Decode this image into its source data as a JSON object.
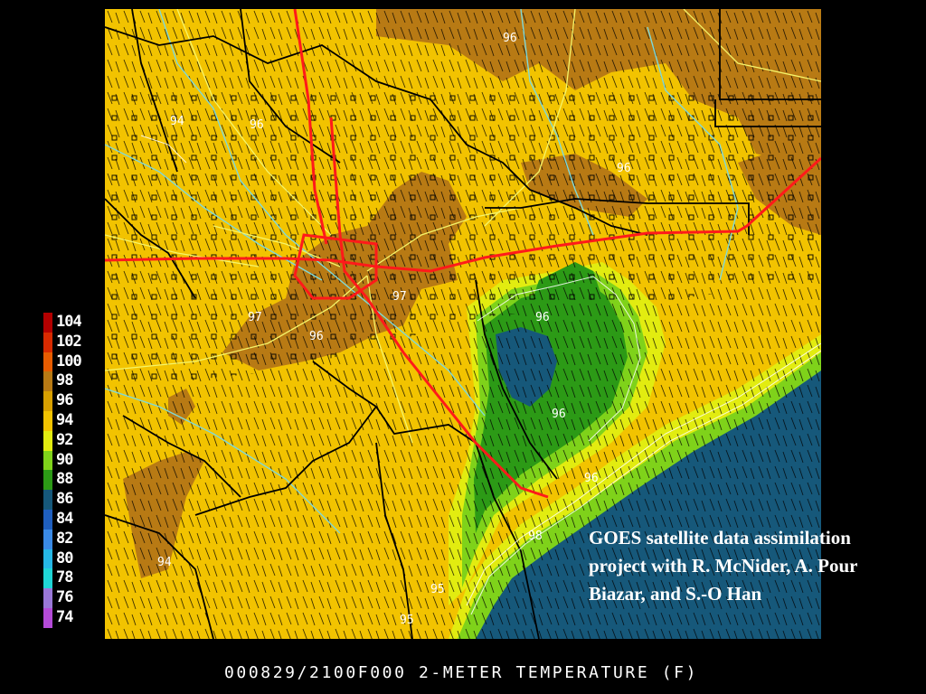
{
  "map": {
    "field": "2-meter temperature",
    "contour_labels": [
      "96",
      "94",
      "96",
      "96",
      "97",
      "97",
      "96",
      "96",
      "96",
      "94",
      "95",
      "96",
      "98",
      "95"
    ]
  },
  "legend": {
    "entries": [
      {
        "label": "104",
        "color": "#b30000"
      },
      {
        "label": "102",
        "color": "#d82a00"
      },
      {
        "label": "100",
        "color": "#e85c00"
      },
      {
        "label": "98",
        "color": "#b87a14"
      },
      {
        "label": "96",
        "color": "#d8a000"
      },
      {
        "label": "94",
        "color": "#f2c300"
      },
      {
        "label": "92",
        "color": "#e2ec10"
      },
      {
        "label": "90",
        "color": "#7fd21a"
      },
      {
        "label": "88",
        "color": "#2c9a16"
      },
      {
        "label": "86",
        "color": "#16587a"
      },
      {
        "label": "84",
        "color": "#1f5fbf"
      },
      {
        "label": "82",
        "color": "#3a8ae6"
      },
      {
        "label": "80",
        "color": "#26b8e6"
      },
      {
        "label": "78",
        "color": "#1fd6d6"
      },
      {
        "label": "76",
        "color": "#9a78d8"
      },
      {
        "label": "74",
        "color": "#b44ad8"
      }
    ]
  },
  "caption": "GOES satellite data assimilation project with R. McNider, A. Pour Biazar, and S.-O Han",
  "title": "000829/2100F000 2-METER TEMPERATURE (F)",
  "colors": {
    "temp_98_plus": "#b87a14",
    "temp_94_96": "#f2c300",
    "temp_92": "#e2ec10",
    "temp_90": "#7fd21a",
    "temp_88": "#2c9a16",
    "water": "#16587a",
    "highway": "#ff1a1a",
    "county_line": "#000000",
    "minor_road": "#f5f56a",
    "river": "#7fd8d8"
  }
}
